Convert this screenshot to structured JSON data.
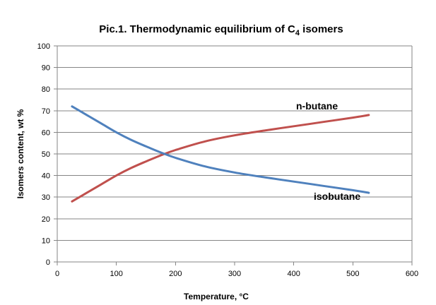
{
  "chart_data": {
    "type": "line",
    "title_main": "Pic.1. Thermodynamic equilibrium of C",
    "title_sub": "4",
    "title_tail": " isomers",
    "xlabel": "Temperature, °C",
    "ylabel": "Isomers content, wt %",
    "xlim": [
      0,
      600
    ],
    "ylim": [
      0,
      100
    ],
    "x_ticks": [
      0,
      100,
      200,
      300,
      400,
      500,
      600
    ],
    "y_ticks": [
      0,
      10,
      20,
      30,
      40,
      50,
      60,
      70,
      80,
      90,
      100
    ],
    "grid": "horizontal",
    "legend": "none",
    "series": [
      {
        "name": "n-butane",
        "color": "#c0504d",
        "x": [
          25,
          50,
          75,
          100,
          125,
          150,
          175,
          200,
          250,
          300,
          350,
          400,
          450,
          500,
          527
        ],
        "y": [
          28,
          32,
          36,
          40,
          43.5,
          46.5,
          49.3,
          51.8,
          55.8,
          58.6,
          60.8,
          62.8,
          64.8,
          66.8,
          68
        ]
      },
      {
        "name": "isobutane",
        "color": "#4f81bd",
        "x": [
          25,
          50,
          75,
          100,
          125,
          150,
          175,
          200,
          250,
          300,
          350,
          400,
          450,
          500,
          527
        ],
        "y": [
          72,
          68,
          64,
          60,
          56.5,
          53.5,
          50.7,
          48.2,
          44.2,
          41.4,
          39.2,
          37.2,
          35.2,
          33.2,
          32
        ]
      }
    ]
  }
}
